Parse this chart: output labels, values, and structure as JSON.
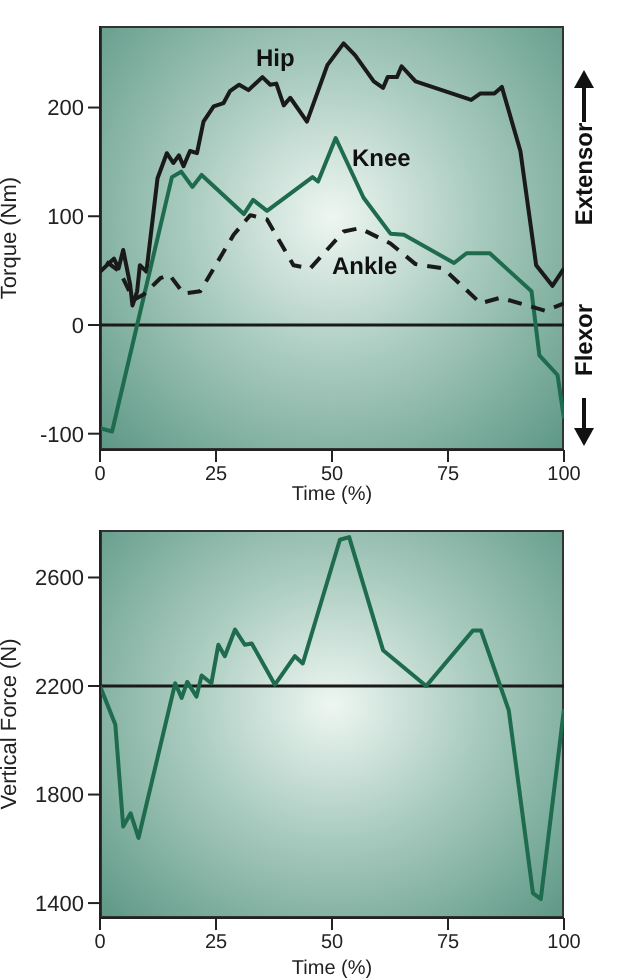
{
  "chart_data": [
    {
      "type": "line",
      "xlabel": "Time (%)",
      "ylabel": "Torque (Nm)",
      "xlim": [
        0,
        100
      ],
      "xticks": [
        0,
        25,
        50,
        75,
        100
      ],
      "ylim": [
        -115,
        275
      ],
      "yticks": [
        -100,
        0,
        100,
        200
      ],
      "marker": "none",
      "ref_lines": [
        {
          "axis": "y",
          "value": 0,
          "color": "#1a1a1a"
        }
      ],
      "annotations": [
        "Extensor",
        "Flexor"
      ],
      "series": [
        {
          "name": "Hip",
          "color": "#1a1a1a",
          "line_style": "solid",
          "x": [
            0,
            3,
            4,
            5,
            6.5,
            7,
            8,
            8.6,
            10,
            12.4,
            14.4,
            15.8,
            17,
            18,
            19.4,
            20.9,
            22.3,
            24.5,
            26.6,
            28,
            30,
            32,
            35,
            36.7,
            38,
            39.6,
            41,
            44.6,
            49,
            52.5,
            55,
            59,
            61,
            62,
            64,
            65,
            68,
            80,
            82,
            85,
            86.6,
            90.6,
            94,
            97.5,
            100
          ],
          "values": [
            49,
            61,
            52,
            69,
            37,
            18,
            31,
            55,
            49,
            135,
            158,
            149,
            156,
            146,
            160,
            158,
            187,
            201,
            204,
            215,
            221,
            216,
            228,
            221,
            222,
            202,
            209,
            187,
            239,
            259,
            248,
            224,
            218,
            228,
            228,
            238,
            224,
            207,
            213,
            213,
            219,
            160,
            55,
            36,
            52
          ]
        },
        {
          "name": "Knee",
          "color": "#1f6b4e",
          "line_style": "solid",
          "x": [
            0,
            2.6,
            8,
            15.5,
            17.5,
            19.9,
            21.9,
            31,
            33,
            36,
            45.8,
            47,
            50.8,
            56.8,
            62.6,
            65.5,
            76.3,
            79,
            84,
            93,
            94.7,
            98.6,
            100
          ],
          "values": [
            -95,
            -98,
            0,
            136,
            141,
            127,
            138,
            102,
            115,
            105,
            136,
            132,
            172,
            117,
            84,
            83,
            57,
            66,
            66,
            31,
            -28,
            -46,
            -86
          ]
        },
        {
          "name": "Ankle",
          "color": "#1a1a1a",
          "line_style": "dashed",
          "x": [
            1.4,
            4.3,
            7.2,
            9.4,
            13,
            15,
            18,
            21.6,
            28.8,
            32.4,
            36,
            41.7,
            45.3,
            52.5,
            56,
            62.6,
            68,
            74,
            82,
            86.3,
            92,
            96,
            100
          ],
          "values": [
            58,
            49,
            23,
            28,
            43,
            46,
            29,
            31,
            83,
            101,
            97,
            55,
            52,
            86,
            89,
            75,
            56,
            52,
            20,
            25,
            18,
            13,
            20
          ]
        }
      ]
    },
    {
      "type": "line",
      "xlabel": "Time (%)",
      "ylabel": "Vertical Force (N)",
      "xlim": [
        0,
        100
      ],
      "xticks": [
        0,
        25,
        50,
        75,
        100
      ],
      "ylim": [
        1345,
        2775
      ],
      "yticks": [
        1400,
        1800,
        2200,
        2600
      ],
      "marker": "none",
      "ref_lines": [
        {
          "axis": "y",
          "value": 2200,
          "color": "#1a1a1a"
        }
      ],
      "series": [
        {
          "color": "#1f6b4e",
          "line_style": "solid",
          "x": [
            0,
            3.3,
            5,
            6.6,
            8.3,
            16.2,
            17.6,
            18.8,
            20.8,
            21.9,
            24,
            25.5,
            26.9,
            29.1,
            31.2,
            32.7,
            37.7,
            42,
            43.7,
            51.7,
            53.7,
            61,
            70.3,
            80.4,
            82.1,
            88.1,
            93.3,
            95,
            100
          ],
          "values": [
            2200,
            2058,
            1682,
            1731,
            1640,
            2210,
            2156,
            2215,
            2161,
            2239,
            2210,
            2352,
            2310,
            2408,
            2352,
            2357,
            2205,
            2310,
            2283,
            2739,
            2749,
            2332,
            2200,
            2405,
            2405,
            2110,
            1437,
            1415,
            2115
          ]
        }
      ]
    }
  ]
}
